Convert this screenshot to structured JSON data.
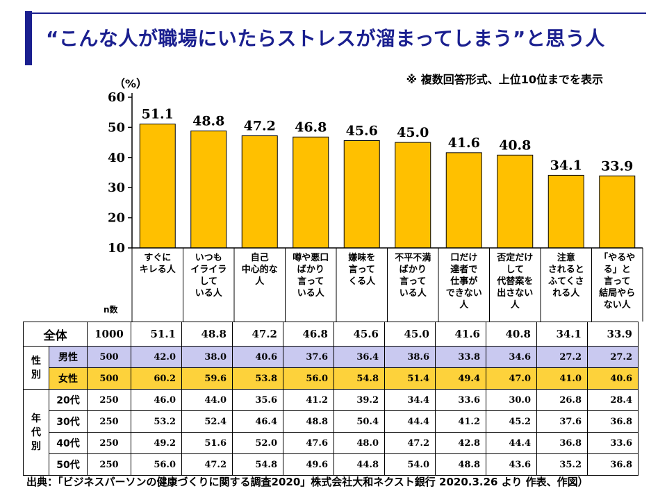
{
  "title": "“こんな人が職場にいたらストレスが溜まってしまう”と思う人",
  "note": "※ 複数回答形式、上位10位までを表示",
  "unit": "（%）",
  "n_label": "n数",
  "colors": {
    "bar": "#ffc000",
    "title": "#1a1f8f",
    "male_row": "#c9c9f0",
    "female_row": "#fdd23b"
  },
  "chart_data": {
    "type": "bar",
    "categories": [
      "すぐに\nキレる人",
      "いつも\nイライラ\nして\nいる人",
      "自己\n中心的な\n人",
      "噂や悪口\nばかり\n言って\nいる人",
      "嫌味を\n言って\nくる人",
      "不平不満\nばかり\n言って\nいる人",
      "口だけ\n達者で\n仕事が\nできない\n人",
      "否定だけ\nして\n代替案を\n出さない\n人",
      "注意\nされると\nふてくさ\nれる人",
      "「やるや\nる」と\n言って\n結局やら\nない人"
    ],
    "values": [
      51.1,
      48.8,
      47.2,
      46.8,
      45.6,
      45.0,
      41.6,
      40.8,
      34.1,
      33.9
    ],
    "value_labels": [
      "51.1",
      "48.8",
      "47.2",
      "46.8",
      "45.6",
      "45.0",
      "41.6",
      "40.8",
      "34.1",
      "33.9"
    ],
    "ylim": [
      10,
      60
    ],
    "yticks": [
      "10",
      "20",
      "30",
      "40",
      "50",
      "60"
    ],
    "grid": false,
    "legend": "none"
  },
  "table": {
    "total": {
      "label": "全体",
      "n": "1000",
      "values": [
        "51.1",
        "48.8",
        "47.2",
        "46.8",
        "45.6",
        "45.0",
        "41.6",
        "40.8",
        "34.1",
        "33.9"
      ]
    },
    "gender_group": "性\n別",
    "male": {
      "label": "男性",
      "n": "500",
      "values": [
        "42.0",
        "38.0",
        "40.6",
        "37.6",
        "36.4",
        "38.6",
        "33.8",
        "34.6",
        "27.2",
        "27.2"
      ]
    },
    "female": {
      "label": "女性",
      "n": "500",
      "values": [
        "60.2",
        "59.6",
        "53.8",
        "56.0",
        "54.8",
        "51.4",
        "49.4",
        "47.0",
        "41.0",
        "40.6"
      ]
    },
    "age_group": "年\n代\n別",
    "age": [
      {
        "label": "20代",
        "n": "250",
        "values": [
          "46.0",
          "44.0",
          "35.6",
          "41.2",
          "39.2",
          "34.4",
          "33.6",
          "30.0",
          "26.8",
          "28.4"
        ]
      },
      {
        "label": "30代",
        "n": "250",
        "values": [
          "53.2",
          "52.4",
          "46.4",
          "48.8",
          "50.4",
          "44.4",
          "41.2",
          "45.2",
          "37.6",
          "36.8"
        ]
      },
      {
        "label": "40代",
        "n": "250",
        "values": [
          "49.2",
          "51.6",
          "52.0",
          "47.6",
          "48.0",
          "47.2",
          "42.8",
          "44.4",
          "36.8",
          "33.6"
        ]
      },
      {
        "label": "50代",
        "n": "250",
        "values": [
          "56.0",
          "47.2",
          "54.8",
          "49.6",
          "44.8",
          "54.0",
          "48.8",
          "43.6",
          "35.2",
          "36.8"
        ]
      }
    ]
  },
  "source": "出典：「ビジネスパーソンの健康づくりに関する調査2020」株式会社大和ネクスト銀行 2020.3.26 より 作表、作図）"
}
